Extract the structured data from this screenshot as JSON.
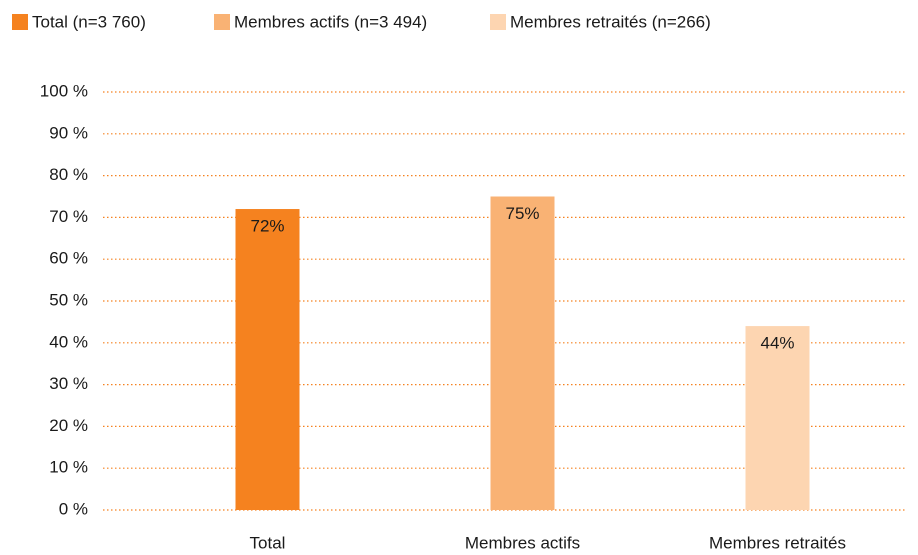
{
  "chart_data": {
    "type": "bar",
    "legend": [
      "Total (n=3 760)",
      "Membres actifs (n=3 494)",
      "Membres retraités (n=266)"
    ],
    "categories": [
      "Total",
      "Membres actifs",
      "Membres retraités"
    ],
    "values": [
      72,
      75,
      44
    ],
    "value_labels": [
      "72%",
      "75%",
      "44%"
    ],
    "colors": [
      "#f5821f",
      "#f9b274",
      "#fdd5b1"
    ],
    "ylim": [
      0,
      100
    ],
    "yticks": [
      {
        "value": 0,
        "label": "0 %"
      },
      {
        "value": 10,
        "label": "10 %"
      },
      {
        "value": 20,
        "label": "20 %"
      },
      {
        "value": 30,
        "label": "30 %"
      },
      {
        "value": 40,
        "label": "40 %"
      },
      {
        "value": 50,
        "label": "50 %"
      },
      {
        "value": 60,
        "label": "60 %"
      },
      {
        "value": 70,
        "label": "70 %"
      },
      {
        "value": 80,
        "label": "80 %"
      },
      {
        "value": 90,
        "label": "90 %"
      },
      {
        "value": 100,
        "label": "100 %"
      }
    ],
    "grid": true
  }
}
